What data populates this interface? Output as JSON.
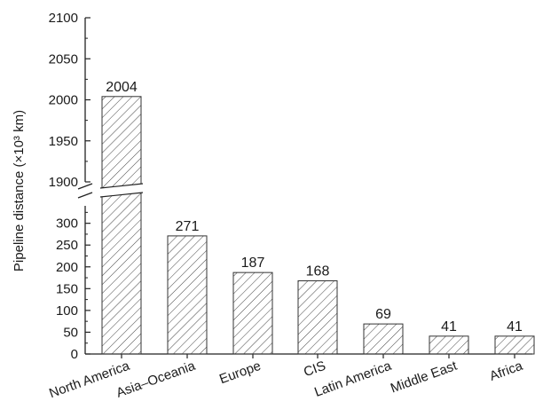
{
  "chart_data": {
    "type": "bar",
    "categories": [
      "North America",
      "Asia–Oceania",
      "Europe",
      "CIS",
      "Latin America",
      "Middle East",
      "Africa"
    ],
    "values": [
      2004,
      271,
      187,
      168,
      69,
      41,
      41
    ],
    "data_labels": [
      "2004",
      "271",
      "187",
      "168",
      "69",
      "41",
      "41"
    ],
    "ylabel": "Pipeline distance (×10³ km)",
    "y_axis_break": {
      "lower_range": [
        0,
        340
      ],
      "upper_range": [
        1900,
        2100
      ]
    },
    "y_ticks_lower": [
      "0",
      "50",
      "100",
      "150",
      "200",
      "250",
      "300"
    ],
    "y_ticks_upper": [
      "1900",
      "1950",
      "2000",
      "2050",
      "2100"
    ],
    "bar_fill": "hatched",
    "grid": false,
    "colors": {
      "bar_stroke": "#333333",
      "hatch": "#444444",
      "axis": "#222222"
    }
  }
}
